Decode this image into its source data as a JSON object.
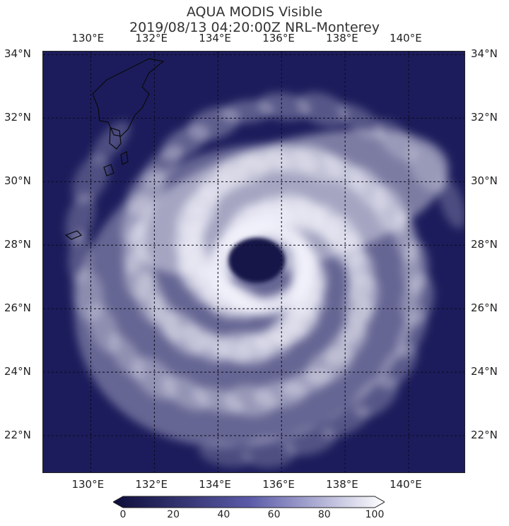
{
  "title": {
    "line1": "AQUA MODIS Visible",
    "line2": "2019/08/13 04:20:00Z NRL-Monterey"
  },
  "map": {
    "lon_min": 128.5,
    "lon_max": 141.8,
    "lat_min": 20.8,
    "lat_max": 34.1,
    "longitude_ticks": [
      {
        "value": 130,
        "label": "130°E"
      },
      {
        "value": 132,
        "label": "132°E"
      },
      {
        "value": 134,
        "label": "134°E"
      },
      {
        "value": 136,
        "label": "136°E"
      },
      {
        "value": 138,
        "label": "138°E"
      },
      {
        "value": 140,
        "label": "140°E"
      }
    ],
    "latitude_ticks": [
      {
        "value": 34,
        "label": "34°N"
      },
      {
        "value": 32,
        "label": "32°N"
      },
      {
        "value": 30,
        "label": "30°N"
      },
      {
        "value": 28,
        "label": "28°N"
      },
      {
        "value": 26,
        "label": "26°N"
      },
      {
        "value": 24,
        "label": "24°N"
      },
      {
        "value": 22,
        "label": "22°N"
      }
    ],
    "storm_center": {
      "lon": 135.4,
      "lat": 27.3
    },
    "colors": {
      "ocean": "#1c1c5c",
      "cloud": "#f4f4fb",
      "grid": "#0a0a1a"
    }
  },
  "colorbar": {
    "ticks": [
      "0",
      "20",
      "40",
      "60",
      "80",
      "100"
    ],
    "colors": {
      "low": "#0d0d3a",
      "mid": "#5a5aa8",
      "high": "#ffffff"
    }
  }
}
